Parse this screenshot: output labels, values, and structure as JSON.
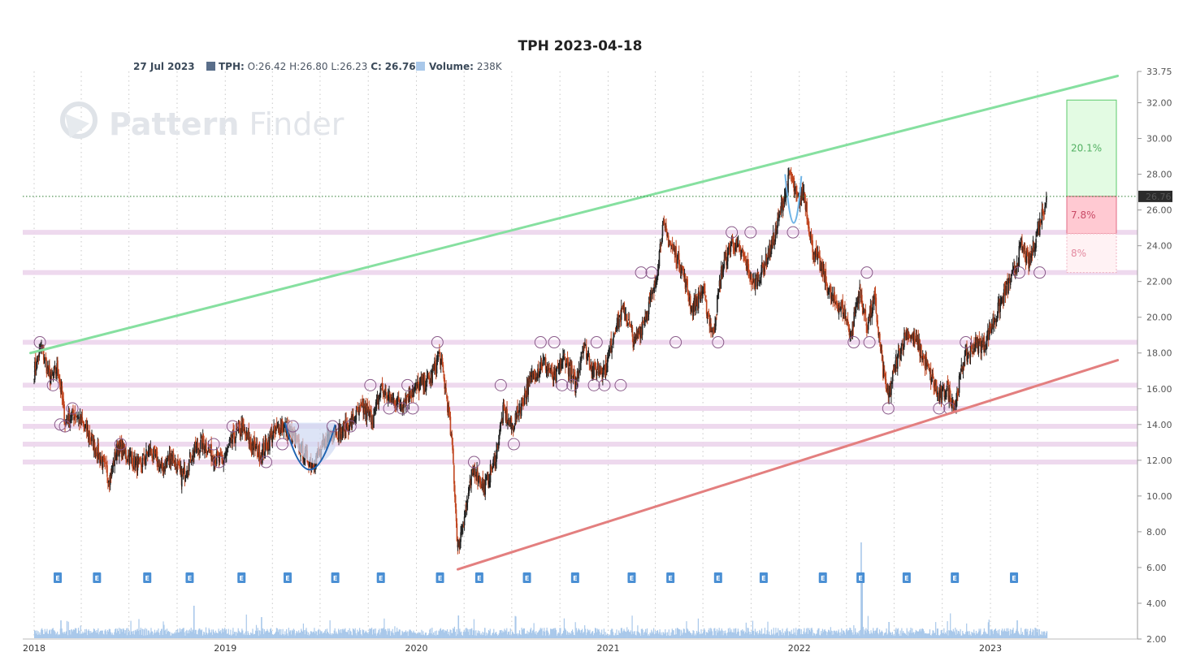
{
  "header": {
    "title": "TPH 2023-04-18",
    "date": "27 Jul 2023",
    "ticker_label": "TPH:",
    "ohlc_text": "O:26.42 H:26.80 L:26.23",
    "close_label": "C:",
    "close_value": "26.76",
    "volume_label": "Volume:",
    "volume_value": "238K"
  },
  "watermark": {
    "text_bold": "Pattern",
    "text_light": "Finder"
  },
  "chart_data": {
    "type": "candlestick",
    "title": "TPH 2023-04-18",
    "ylim": [
      2.0,
      33.75
    ],
    "y_ticks": [
      "33.75",
      "32.00",
      "30.00",
      "28.00",
      "26.00",
      "24.00",
      "22.00",
      "20.00",
      "18.00",
      "16.00",
      "14.00",
      "12.00",
      "10.00",
      "8.00",
      "6.00",
      "4.00",
      "2.00"
    ],
    "x_ticks": [
      "2018",
      "2019",
      "2020",
      "2021",
      "2022",
      "2023"
    ],
    "x_range": [
      "2018-01-01",
      "2023-12-31"
    ],
    "last_price": "26.76",
    "price_path": [
      [
        "2018-01-01",
        17.0
      ],
      [
        "2018-01-15",
        18.3
      ],
      [
        "2018-02-01",
        16.5
      ],
      [
        "2018-02-15",
        17.2
      ],
      [
        "2018-03-01",
        14.2
      ],
      [
        "2018-03-20",
        14.6
      ],
      [
        "2018-04-10",
        13.8
      ],
      [
        "2018-05-01",
        12.5
      ],
      [
        "2018-05-25",
        11.0
      ],
      [
        "2018-06-10",
        12.8
      ],
      [
        "2018-07-01",
        12.2
      ],
      [
        "2018-07-20",
        11.6
      ],
      [
        "2018-08-10",
        12.6
      ],
      [
        "2018-09-01",
        11.5
      ],
      [
        "2018-09-20",
        12.3
      ],
      [
        "2018-10-10",
        11.0
      ],
      [
        "2018-11-01",
        12.5
      ],
      [
        "2018-11-20",
        13.0
      ],
      [
        "2018-12-10",
        12.2
      ],
      [
        "2018-12-26",
        11.9
      ],
      [
        "2019-01-15",
        13.2
      ],
      [
        "2019-02-01",
        13.8
      ],
      [
        "2019-02-20",
        12.9
      ],
      [
        "2019-03-10",
        12.3
      ],
      [
        "2019-04-01",
        13.4
      ],
      [
        "2019-04-20",
        14.0
      ],
      [
        "2019-05-05",
        13.5
      ],
      [
        "2019-05-25",
        12.6
      ],
      [
        "2019-06-15",
        11.8
      ],
      [
        "2019-07-05",
        12.6
      ],
      [
        "2019-07-20",
        13.6
      ],
      [
        "2019-08-10",
        13.6
      ],
      [
        "2019-09-01",
        14.2
      ],
      [
        "2019-09-20",
        14.9
      ],
      [
        "2019-10-10",
        14.3
      ],
      [
        "2019-10-25",
        16.0
      ],
      [
        "2019-11-10",
        15.5
      ],
      [
        "2019-12-01",
        15.2
      ],
      [
        "2019-12-20",
        15.8
      ],
      [
        "2020-01-10",
        16.2
      ],
      [
        "2020-01-30",
        16.6
      ],
      [
        "2020-02-14",
        18.0
      ],
      [
        "2020-02-28",
        15.5
      ],
      [
        "2020-03-10",
        12.5
      ],
      [
        "2020-03-20",
        7.0
      ],
      [
        "2020-04-05",
        9.5
      ],
      [
        "2020-04-20",
        11.5
      ],
      [
        "2020-05-10",
        10.5
      ],
      [
        "2020-05-30",
        12.0
      ],
      [
        "2020-06-15",
        14.8
      ],
      [
        "2020-07-01",
        13.8
      ],
      [
        "2020-07-20",
        15.2
      ],
      [
        "2020-08-10",
        16.8
      ],
      [
        "2020-09-01",
        17.5
      ],
      [
        "2020-09-20",
        16.5
      ],
      [
        "2020-10-10",
        17.8
      ],
      [
        "2020-10-30",
        16.2
      ],
      [
        "2020-11-15",
        18.5
      ],
      [
        "2020-12-05",
        17.0
      ],
      [
        "2020-12-28",
        17.2
      ],
      [
        "2021-01-15",
        19.5
      ],
      [
        "2021-02-01",
        20.5
      ],
      [
        "2021-02-20",
        18.5
      ],
      [
        "2021-03-10",
        19.8
      ],
      [
        "2021-03-30",
        21.5
      ],
      [
        "2021-04-15",
        25.0
      ],
      [
        "2021-05-01",
        24.0
      ],
      [
        "2021-05-20",
        23.0
      ],
      [
        "2021-06-10",
        20.5
      ],
      [
        "2021-07-01",
        21.5
      ],
      [
        "2021-07-20",
        19.0
      ],
      [
        "2021-08-05",
        22.5
      ],
      [
        "2021-08-25",
        24.2
      ],
      [
        "2021-09-15",
        23.5
      ],
      [
        "2021-10-05",
        21.8
      ],
      [
        "2021-10-25",
        22.8
      ],
      [
        "2021-11-15",
        24.5
      ],
      [
        "2021-12-01",
        26.5
      ],
      [
        "2021-12-15",
        28.0
      ],
      [
        "2021-12-28",
        26.5
      ],
      [
        "2022-01-10",
        27.0
      ],
      [
        "2022-01-25",
        24.0
      ],
      [
        "2022-02-15",
        22.5
      ],
      [
        "2022-03-05",
        21.0
      ],
      [
        "2022-03-25",
        20.5
      ],
      [
        "2022-04-10",
        19.0
      ],
      [
        "2022-04-25",
        21.5
      ],
      [
        "2022-05-10",
        19.5
      ],
      [
        "2022-05-25",
        21.0
      ],
      [
        "2022-06-10",
        17.0
      ],
      [
        "2022-06-20",
        15.5
      ],
      [
        "2022-07-05",
        17.5
      ],
      [
        "2022-07-25",
        19.2
      ],
      [
        "2022-08-15",
        18.5
      ],
      [
        "2022-09-05",
        17.0
      ],
      [
        "2022-09-25",
        15.5
      ],
      [
        "2022-10-10",
        16.0
      ],
      [
        "2022-10-25",
        15.0
      ],
      [
        "2022-11-10",
        17.5
      ],
      [
        "2022-12-01",
        18.5
      ],
      [
        "2022-12-20",
        18.5
      ],
      [
        "2023-01-10",
        20.0
      ],
      [
        "2023-01-31",
        21.5
      ],
      [
        "2023-02-15",
        22.5
      ],
      [
        "2023-03-01",
        24.0
      ],
      [
        "2023-03-15",
        23.0
      ],
      [
        "2023-04-01",
        24.8
      ],
      [
        "2023-04-18",
        26.76
      ]
    ],
    "support_levels": [
      24.75,
      22.5,
      18.6,
      16.2,
      14.9,
      13.9,
      12.9,
      11.9
    ],
    "trendlines": [
      {
        "name": "resistance",
        "color": "#86e0a0",
        "from": [
          "2017-12-25",
          18.0
        ],
        "to": [
          "2023-09-01",
          33.5
        ]
      },
      {
        "name": "support",
        "color": "#e37f7f",
        "from": [
          "2020-03-20",
          5.9
        ],
        "to": [
          "2023-09-01",
          17.6
        ]
      }
    ],
    "targets": [
      {
        "label": "20.1%",
        "low": 26.76,
        "high": 32.15,
        "color": "#e3fbe3",
        "stroke": "#5bc96b",
        "text_color": "#52b062"
      },
      {
        "label": "7.8%",
        "low": 24.67,
        "high": 26.76,
        "color": "#ffc9d2",
        "stroke": "#e26a84",
        "text_color": "#c94a66"
      },
      {
        "label": "8%",
        "low": 22.5,
        "high": 24.67,
        "color": "#fff2f4",
        "stroke": "#f0b0c0",
        "text_color": "#e48aa0"
      }
    ],
    "earnings_marker": "E",
    "earnings_dates": [
      "2018-02-15",
      "2018-05-01",
      "2018-08-05",
      "2018-10-25",
      "2019-02-01",
      "2019-04-30",
      "2019-07-30",
      "2019-10-25",
      "2020-02-15",
      "2020-04-30",
      "2020-07-30",
      "2020-10-30",
      "2021-02-15",
      "2021-04-30",
      "2021-07-30",
      "2021-10-25",
      "2022-02-15",
      "2022-04-28",
      "2022-07-25",
      "2022-10-25",
      "2023-02-15"
    ],
    "colors": {
      "up": "#222222",
      "down": "#c0451f",
      "volume": "#a9c8ea",
      "grid": "#c8c8c8",
      "level_band": "#ecd5ec"
    }
  }
}
